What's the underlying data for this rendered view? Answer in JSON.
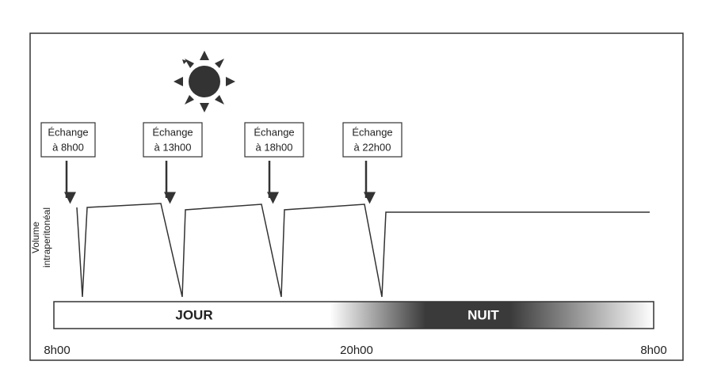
{
  "exchanges": [
    {
      "line1": "Échange",
      "line2": "à 8h00"
    },
    {
      "line1": "Échange",
      "line2": "à 13h00"
    },
    {
      "line1": "Échange",
      "line2": "à 18h00"
    },
    {
      "line1": "Échange",
      "line2": "à 22h00"
    }
  ],
  "y_label": [
    "Volume",
    "intraperitonéal"
  ],
  "periods": [
    "JOUR",
    "NUIT"
  ],
  "times": [
    "8h00",
    "20h00",
    "8h00"
  ]
}
